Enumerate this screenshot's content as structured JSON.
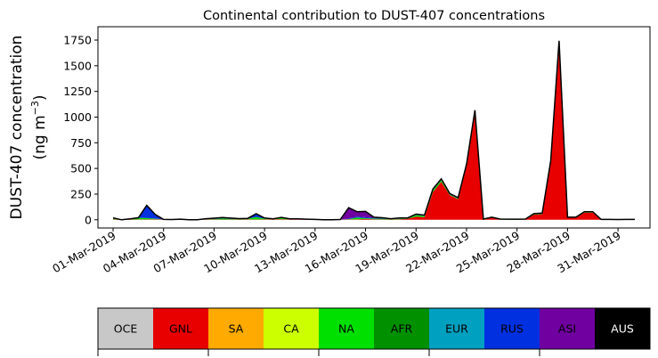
{
  "chart_data": {
    "type": "area",
    "stacked": true,
    "title": "Continental contribution to DUST-407 concentrations",
    "ylabel_line1": "DUST-407 concentration",
    "ylabel_line2": "(ng m",
    "ylabel_sup": "−3",
    "ylabel_close": ")",
    "ylim": [
      -80,
      1880
    ],
    "yticks": [
      0,
      250,
      500,
      750,
      1000,
      1250,
      1500,
      1750
    ],
    "xlim": [
      -0.9,
      31.9
    ],
    "xticks": [
      {
        "day": 0,
        "label": "01-Mar-2019"
      },
      {
        "day": 3,
        "label": "04-Mar-2019"
      },
      {
        "day": 6,
        "label": "07-Mar-2019"
      },
      {
        "day": 9,
        "label": "10-Mar-2019"
      },
      {
        "day": 12,
        "label": "13-Mar-2019"
      },
      {
        "day": 15,
        "label": "16-Mar-2019"
      },
      {
        "day": 18,
        "label": "19-Mar-2019"
      },
      {
        "day": 21,
        "label": "22-Mar-2019"
      },
      {
        "day": 24,
        "label": "25-Mar-2019"
      },
      {
        "day": 27,
        "label": "28-Mar-2019"
      },
      {
        "day": 30,
        "label": "31-Mar-2019"
      }
    ],
    "x_days": [
      0,
      0.5,
      1,
      1.5,
      2,
      2.5,
      3,
      3.5,
      4,
      4.5,
      5,
      5.5,
      6,
      6.5,
      7,
      7.5,
      8,
      8.5,
      9,
      9.5,
      10,
      10.5,
      11,
      11.5,
      12,
      12.5,
      13,
      13.5,
      14,
      14.5,
      15,
      15.5,
      16,
      16.5,
      17,
      17.5,
      18,
      18.5,
      19,
      19.5,
      20,
      20.5,
      21,
      21.5,
      22,
      22.5,
      23,
      23.5,
      24,
      24.5,
      25,
      25.5,
      26,
      26.5,
      27,
      27.5,
      28,
      28.5,
      29,
      29.5,
      30,
      30.5,
      31
    ],
    "series": [
      {
        "name": "GNL",
        "color": "#e80000",
        "values": [
          5,
          0,
          2,
          3,
          5,
          4,
          3,
          2,
          1,
          1,
          1,
          2,
          3,
          2,
          3,
          2,
          4,
          3,
          5,
          4,
          6,
          3,
          2,
          2,
          1,
          1,
          1,
          2,
          3,
          5,
          8,
          4,
          3,
          2,
          5,
          10,
          30,
          25,
          270,
          370,
          240,
          200,
          520,
          1030,
          2,
          20,
          2,
          1,
          1,
          2,
          50,
          55,
          560,
          1720,
          20,
          20,
          70,
          70,
          2,
          2,
          1,
          2,
          2
        ]
      },
      {
        "name": "NA",
        "color": "#00e000",
        "values": [
          5,
          0,
          5,
          15,
          10,
          5,
          0,
          0,
          2,
          0,
          0,
          3,
          4,
          10,
          5,
          6,
          5,
          20,
          5,
          2,
          10,
          4,
          5,
          2,
          1,
          0,
          0,
          0,
          3,
          15,
          5,
          6,
          5,
          5,
          4,
          3,
          15,
          10,
          15,
          15,
          5,
          5,
          10,
          10,
          2,
          2,
          2,
          2,
          2,
          2,
          5,
          5,
          5,
          10,
          2,
          2,
          5,
          5,
          1,
          1,
          1,
          1,
          1
        ]
      },
      {
        "name": "AFR",
        "color": "#009000",
        "values": [
          2,
          0,
          2,
          2,
          2,
          2,
          0,
          0,
          1,
          0,
          0,
          1,
          1,
          2,
          1,
          1,
          1,
          5,
          1,
          1,
          2,
          1,
          1,
          1,
          0,
          0,
          0,
          0,
          1,
          2,
          2,
          2,
          2,
          1,
          1,
          1,
          2,
          2,
          3,
          3,
          2,
          2,
          2,
          5,
          1,
          1,
          1,
          1,
          1,
          1,
          1,
          1,
          2,
          2,
          1,
          1,
          1,
          1,
          0,
          0,
          0,
          0,
          0
        ]
      },
      {
        "name": "RUS",
        "color": "#0030e0",
        "values": [
          5,
          0,
          0,
          0,
          115,
          35,
          0,
          0,
          2,
          0,
          0,
          3,
          5,
          6,
          5,
          1,
          3,
          25,
          5,
          2,
          3,
          1,
          1,
          1,
          1,
          0,
          0,
          0,
          5,
          10,
          10,
          5,
          5,
          0,
          5,
          2,
          3,
          3,
          5,
          5,
          3,
          3,
          5,
          10,
          1,
          1,
          1,
          1,
          1,
          1,
          2,
          2,
          3,
          5,
          1,
          1,
          2,
          2,
          0,
          0,
          0,
          0,
          0
        ]
      },
      {
        "name": "ASI",
        "color": "#7000a0",
        "values": [
          2,
          0,
          0,
          0,
          6,
          4,
          0,
          0,
          0,
          0,
          0,
          1,
          2,
          2,
          2,
          1,
          1,
          5,
          1,
          0,
          2,
          0,
          0,
          0,
          0,
          0,
          0,
          0,
          105,
          45,
          55,
          8,
          5,
          2,
          2,
          2,
          5,
          5,
          5,
          5,
          5,
          5,
          5,
          10,
          1,
          1,
          1,
          1,
          1,
          1,
          2,
          2,
          3,
          5,
          1,
          1,
          1,
          1,
          0,
          0,
          0,
          0,
          0
        ]
      },
      {
        "name": "EUR",
        "color": "#00a0c0",
        "values": [
          0,
          0,
          0,
          0,
          2,
          2,
          0,
          0,
          0,
          0,
          0,
          0,
          0,
          0,
          0,
          0,
          0,
          1,
          0,
          0,
          0,
          0,
          0,
          0,
          0,
          0,
          0,
          0,
          1,
          1,
          1,
          0,
          0,
          0,
          0,
          0,
          0,
          0,
          1,
          1,
          1,
          1,
          1,
          2,
          0,
          0,
          0,
          0,
          0,
          0,
          0,
          0,
          1,
          1,
          0,
          0,
          0,
          0,
          0,
          0,
          0,
          0,
          0
        ]
      }
    ],
    "legend": {
      "placement": "bottom",
      "entries": [
        {
          "name": "OCE",
          "color": "#c8c8c8",
          "text_color": "#000000"
        },
        {
          "name": "GNL",
          "color": "#e80000",
          "text_color": "#000000"
        },
        {
          "name": "SA",
          "color": "#ffaa00",
          "text_color": "#000000"
        },
        {
          "name": "CA",
          "color": "#ccff00",
          "text_color": "#000000"
        },
        {
          "name": "NA",
          "color": "#00e000",
          "text_color": "#000000"
        },
        {
          "name": "AFR",
          "color": "#009000",
          "text_color": "#000000"
        },
        {
          "name": "EUR",
          "color": "#00a0c0",
          "text_color": "#000000"
        },
        {
          "name": "RUS",
          "color": "#0030e0",
          "text_color": "#000000"
        },
        {
          "name": "ASI",
          "color": "#7000a0",
          "text_color": "#000000"
        },
        {
          "name": "AUS",
          "color": "#000000",
          "text_color": "#ffffff"
        }
      ]
    },
    "grid": false
  }
}
